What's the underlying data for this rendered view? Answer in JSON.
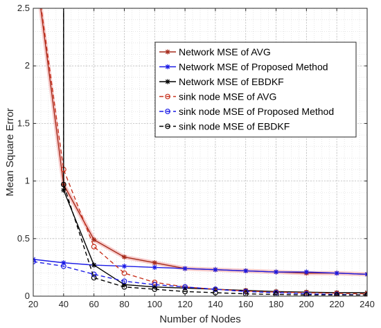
{
  "chart_data": {
    "type": "line",
    "title": "",
    "xlabel": "Number of Nodes",
    "ylabel": "Mean Square Error",
    "xlim": [
      20,
      240
    ],
    "ylim": [
      0,
      2.5
    ],
    "x_ticks": [
      20,
      40,
      60,
      80,
      100,
      120,
      140,
      160,
      180,
      200,
      220,
      240
    ],
    "y_ticks": [
      0,
      0.5,
      1,
      1.5,
      2,
      2.5
    ],
    "y_tick_labels": [
      "0",
      "0.5",
      "1",
      "1.5",
      "2",
      "2.5"
    ],
    "grid": true,
    "minor_grid": true,
    "legend_position": "top-right",
    "series": [
      {
        "name": "Network MSE of AVG",
        "color": "#a52a1a",
        "marker": "asterisk",
        "dash": "solid",
        "glow": true,
        "points": [
          [
            20,
            3.0
          ],
          [
            40,
            0.97
          ],
          [
            60,
            0.49
          ],
          [
            80,
            0.34
          ],
          [
            100,
            0.29
          ],
          [
            120,
            0.24
          ],
          [
            140,
            0.23
          ],
          [
            160,
            0.22
          ],
          [
            180,
            0.21
          ],
          [
            200,
            0.2
          ],
          [
            220,
            0.2
          ],
          [
            240,
            0.19
          ]
        ]
      },
      {
        "name": "Network MSE of Proposed Method",
        "color": "#1a1ae6",
        "marker": "asterisk",
        "dash": "solid",
        "glow": false,
        "points": [
          [
            20,
            0.32
          ],
          [
            40,
            0.29
          ],
          [
            60,
            0.27
          ],
          [
            80,
            0.26
          ],
          [
            100,
            0.25
          ],
          [
            120,
            0.24
          ],
          [
            140,
            0.23
          ],
          [
            160,
            0.22
          ],
          [
            180,
            0.21
          ],
          [
            200,
            0.21
          ],
          [
            220,
            0.2
          ],
          [
            240,
            0.19
          ]
        ]
      },
      {
        "name": "Network MSE of EBDKF",
        "color": "#000000",
        "marker": "asterisk",
        "dash": "solid",
        "glow": false,
        "points": [
          [
            40,
            3.0
          ],
          [
            40,
            0.92
          ],
          [
            60,
            0.27
          ],
          [
            80,
            0.1
          ],
          [
            100,
            0.08
          ],
          [
            120,
            0.07
          ],
          [
            140,
            0.06
          ],
          [
            160,
            0.05
          ],
          [
            180,
            0.04
          ],
          [
            200,
            0.035
          ],
          [
            220,
            0.03
          ],
          [
            240,
            0.03
          ]
        ]
      },
      {
        "name": "sink node MSE of AVG",
        "color": "#c8321e",
        "marker": "circle",
        "dash": "dashed",
        "glow": false,
        "points": [
          [
            20,
            3.0
          ],
          [
            40,
            1.1
          ],
          [
            60,
            0.43
          ],
          [
            80,
            0.2
          ],
          [
            100,
            0.12
          ],
          [
            120,
            0.08
          ],
          [
            140,
            0.06
          ],
          [
            160,
            0.045
          ],
          [
            180,
            0.035
          ],
          [
            200,
            0.03
          ],
          [
            220,
            0.025
          ],
          [
            240,
            0.02
          ]
        ]
      },
      {
        "name": "sink node MSE of Proposed Method",
        "color": "#1a1ae6",
        "marker": "circle",
        "dash": "dashed",
        "glow": false,
        "points": [
          [
            20,
            0.3
          ],
          [
            40,
            0.26
          ],
          [
            60,
            0.19
          ],
          [
            80,
            0.13
          ],
          [
            100,
            0.1
          ],
          [
            120,
            0.08
          ],
          [
            140,
            0.06
          ],
          [
            160,
            0.04
          ],
          [
            180,
            0.03
          ],
          [
            200,
            0.02
          ],
          [
            220,
            0.015
          ],
          [
            240,
            0.01
          ]
        ]
      },
      {
        "name": "sink node MSE of EBDKF",
        "color": "#000000",
        "marker": "circle",
        "dash": "dashed",
        "glow": false,
        "points": [
          [
            40,
            3.0
          ],
          [
            40,
            0.97
          ],
          [
            60,
            0.16
          ],
          [
            80,
            0.08
          ],
          [
            100,
            0.06
          ],
          [
            120,
            0.04
          ],
          [
            140,
            0.03
          ],
          [
            160,
            0.02
          ],
          [
            180,
            0.015
          ],
          [
            200,
            0.01
          ],
          [
            220,
            0.01
          ],
          [
            240,
            0.01
          ]
        ]
      }
    ]
  }
}
